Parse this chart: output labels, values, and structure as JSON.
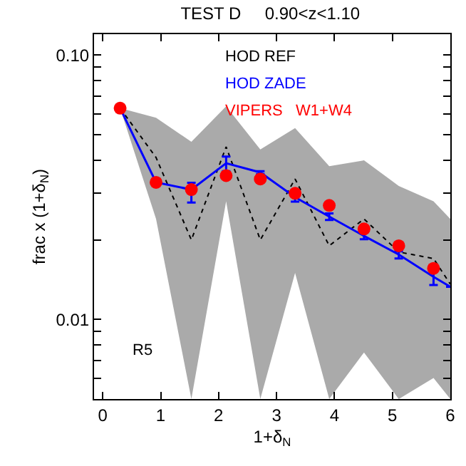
{
  "chart_data": {
    "type": "line",
    "title": "TEST D     0.90<z<1.10",
    "xlabel": "1+δ$_{N}$",
    "ylabel": "frac x (1+δ$_{N}$)",
    "log": "y",
    "xlim": [
      -0.15,
      6
    ],
    "ylim": [
      0.005,
      0.12
    ],
    "xticks": [
      0,
      1,
      2,
      3,
      4,
      5,
      6
    ],
    "yticks": [
      {
        "value": 0.006,
        "label": null
      },
      {
        "value": 0.007,
        "label": null
      },
      {
        "value": 0.008,
        "label": null
      },
      {
        "value": 0.009,
        "label": null
      },
      {
        "value": 0.01,
        "label": "0.01"
      },
      {
        "value": 0.02,
        "label": null
      },
      {
        "value": 0.03,
        "label": null
      },
      {
        "value": 0.04,
        "label": null
      },
      {
        "value": 0.05,
        "label": null
      },
      {
        "value": 0.06,
        "label": null
      },
      {
        "value": 0.07,
        "label": null
      },
      {
        "value": 0.08,
        "label": null
      },
      {
        "value": 0.09,
        "label": null
      },
      {
        "value": 0.1,
        "label": "0.10"
      }
    ],
    "annotations": [
      "R5"
    ],
    "series": [
      {
        "name": "HOD REF",
        "color": "#000000",
        "line_style": "dotted",
        "x": [
          0.3,
          0.92,
          1.53,
          2.13,
          2.72,
          3.32,
          3.91,
          4.51,
          5.11,
          5.71,
          6
        ],
        "values": [
          0.063,
          0.041,
          0.02,
          0.045,
          0.02,
          0.034,
          0.019,
          0.024,
          0.018,
          0.017,
          0.0136
        ],
        "lower": [
          0.063,
          0.024,
          0.005,
          0.028,
          0.005,
          0.015,
          0.005,
          0.0075,
          0.005,
          0.006,
          0.005
        ],
        "upper": [
          0.063,
          0.058,
          0.047,
          0.064,
          0.044,
          0.053,
          0.038,
          0.04,
          0.032,
          0.028,
          0.024
        ]
      },
      {
        "name": "HOD ZADE",
        "color": "#0000ff",
        "line_style": "solid",
        "x": [
          0.3,
          0.92,
          1.53,
          2.13,
          2.72,
          3.32,
          3.91,
          4.51,
          5.11,
          5.71,
          6
        ],
        "values": [
          0.063,
          0.033,
          0.031,
          0.039,
          0.036,
          0.029,
          0.0245,
          0.0207,
          0.0176,
          0.0145,
          0.0133
        ],
        "errors": [
          null,
          null,
          [
            0.0277,
            0.0329
          ],
          [
            0.0364,
            0.0413
          ],
          [
            0.0355,
            0.0364
          ],
          [
            0.0279,
            0.0299
          ],
          [
            0.0238,
            0.0252
          ],
          [
            0.0201,
            0.0213
          ],
          [
            0.017,
            0.0181
          ],
          [
            0.0135,
            0.0155
          ],
          null
        ]
      },
      {
        "name": "VIPERS   W1+W4",
        "type": "scatter",
        "color": "#ff0000",
        "marker": "circle",
        "x": [
          0.3,
          0.92,
          1.53,
          2.13,
          2.72,
          3.32,
          3.91,
          4.51,
          5.11,
          5.71
        ],
        "values": [
          0.063,
          0.033,
          0.031,
          0.035,
          0.034,
          0.03,
          0.027,
          0.022,
          0.019,
          0.0156
        ]
      }
    ]
  }
}
